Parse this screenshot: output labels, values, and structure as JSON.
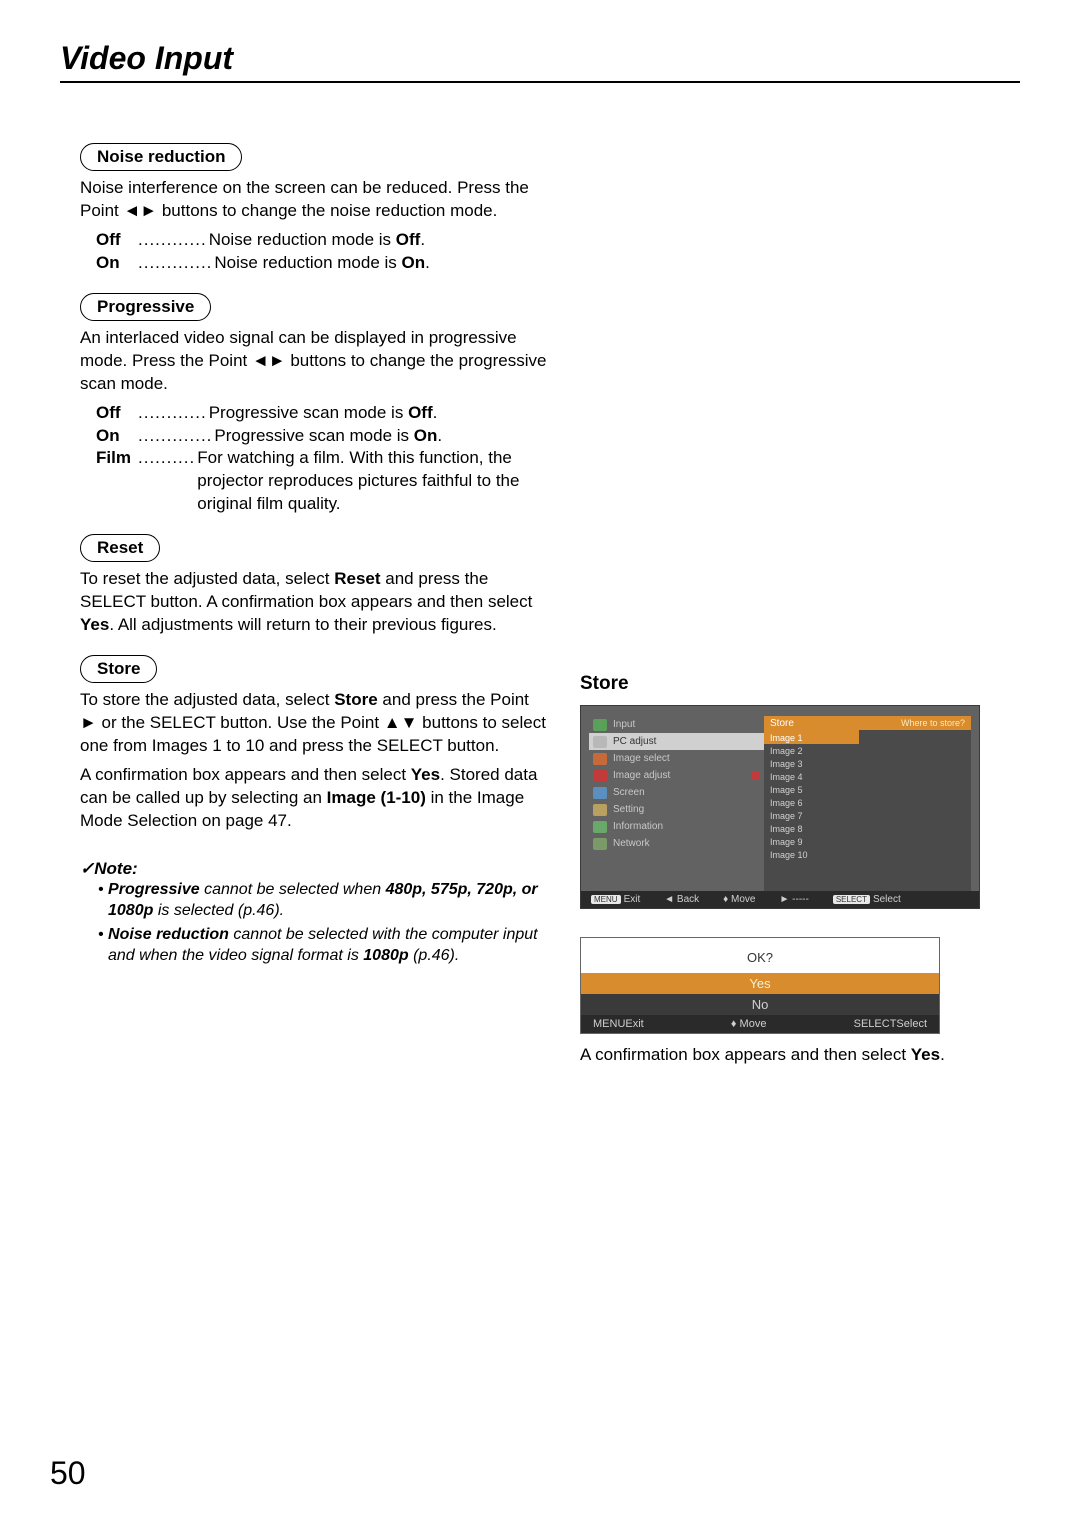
{
  "page": {
    "title": "Video Input",
    "number": "50"
  },
  "sections": {
    "noise": {
      "label": "Noise reduction",
      "desc": "Noise interference on the screen can be reduced. Press the Point ◄► buttons to change the noise reduction mode.",
      "off": {
        "term": "Off",
        "dots": "............",
        "text_a": "Noise reduction mode is ",
        "bold": "Off",
        "text_b": "."
      },
      "on": {
        "term": "On",
        "dots": ".............",
        "text_a": "Noise reduction mode is ",
        "bold": "On",
        "text_b": "."
      }
    },
    "progressive": {
      "label": "Progressive",
      "desc": "An interlaced video signal can be displayed in progressive mode. Press the Point ◄► buttons to change the progressive scan mode.",
      "off": {
        "term": "Off",
        "dots": "............",
        "text_a": "Progressive scan mode is ",
        "bold": "Off",
        "text_b": "."
      },
      "on": {
        "term": "On",
        "dots": ".............",
        "text_a": "Progressive scan mode is ",
        "bold": "On",
        "text_b": "."
      },
      "film": {
        "term": "Film",
        "dots": "..........",
        "text": "For watching a film. With this function, the projector reproduces pictures faithful to the original film quality."
      }
    },
    "reset": {
      "label": "Reset",
      "desc_a": "To reset the adjusted data, select ",
      "desc_b": "Reset",
      "desc_c": " and press the SELECT button. A confirmation box appears and then select ",
      "desc_d": "Yes",
      "desc_e": ". All adjustments will return to their previous figures."
    },
    "store": {
      "label": "Store",
      "p1_a": "To store the adjusted data, select ",
      "p1_b": "Store",
      "p1_c": " and press the Point ► or the SELECT button. Use the Point ▲▼ buttons to select one from Images 1 to 10 and press the SELECT button.",
      "p2_a": "A confirmation box appears and then select ",
      "p2_b": "Yes",
      "p2_c": ". Stored data can be called up by selecting an ",
      "p2_d": "Image (1-10)",
      "p2_e": " in the Image Mode Selection on page 47."
    }
  },
  "note": {
    "head": "✓Note:",
    "items": [
      {
        "a": "• ",
        "b1": "Progressive",
        "t1": " cannot be selected when ",
        "b2": "480p, 575p, 720p, or 1080p",
        "t2": " is selected (p.46)."
      },
      {
        "a": "• ",
        "b1": "Noise reduction",
        "t1": " cannot be selected with the computer input and when the video signal format is ",
        "b2": "1080p",
        "t2": " (p.46)."
      }
    ]
  },
  "right": {
    "heading": "Store",
    "menu": {
      "left_items": [
        {
          "label": "Input",
          "icon": "input"
        },
        {
          "label": "PC adjust",
          "icon": "pc",
          "sel": true
        },
        {
          "label": "Image select",
          "icon": "imgsel"
        },
        {
          "label": "Image adjust",
          "icon": "imgadj",
          "arrow": true
        },
        {
          "label": "Screen",
          "icon": "screen"
        },
        {
          "label": "Setting",
          "icon": "setting"
        },
        {
          "label": "Information",
          "icon": "info"
        },
        {
          "label": "Network",
          "icon": "network"
        }
      ],
      "mid_head": "Store",
      "mid_items": [
        "Image 1",
        "Image 2",
        "Image 3",
        "Image 4",
        "Image 5",
        "Image 6",
        "Image 7",
        "Image 8",
        "Image 9",
        "Image 10"
      ],
      "mid_selected_index": 0,
      "right_head": "Where to store?",
      "footer": {
        "exit_kb": "MENU",
        "exit": "Exit",
        "back": "◄ Back",
        "move": "♦ Move",
        "dash": "► -----",
        "select_kb": "SELECT",
        "select": "Select"
      }
    },
    "confirm": {
      "question": "OK?",
      "yes": "Yes",
      "no": "No",
      "footer": {
        "exit_kb": "MENU",
        "exit": "Exit",
        "move": "♦ Move",
        "select_kb": "SELECT",
        "select": "Select"
      }
    },
    "caption_a": "A confirmation box appears and then select ",
    "caption_b": "Yes",
    "caption_c": "."
  }
}
